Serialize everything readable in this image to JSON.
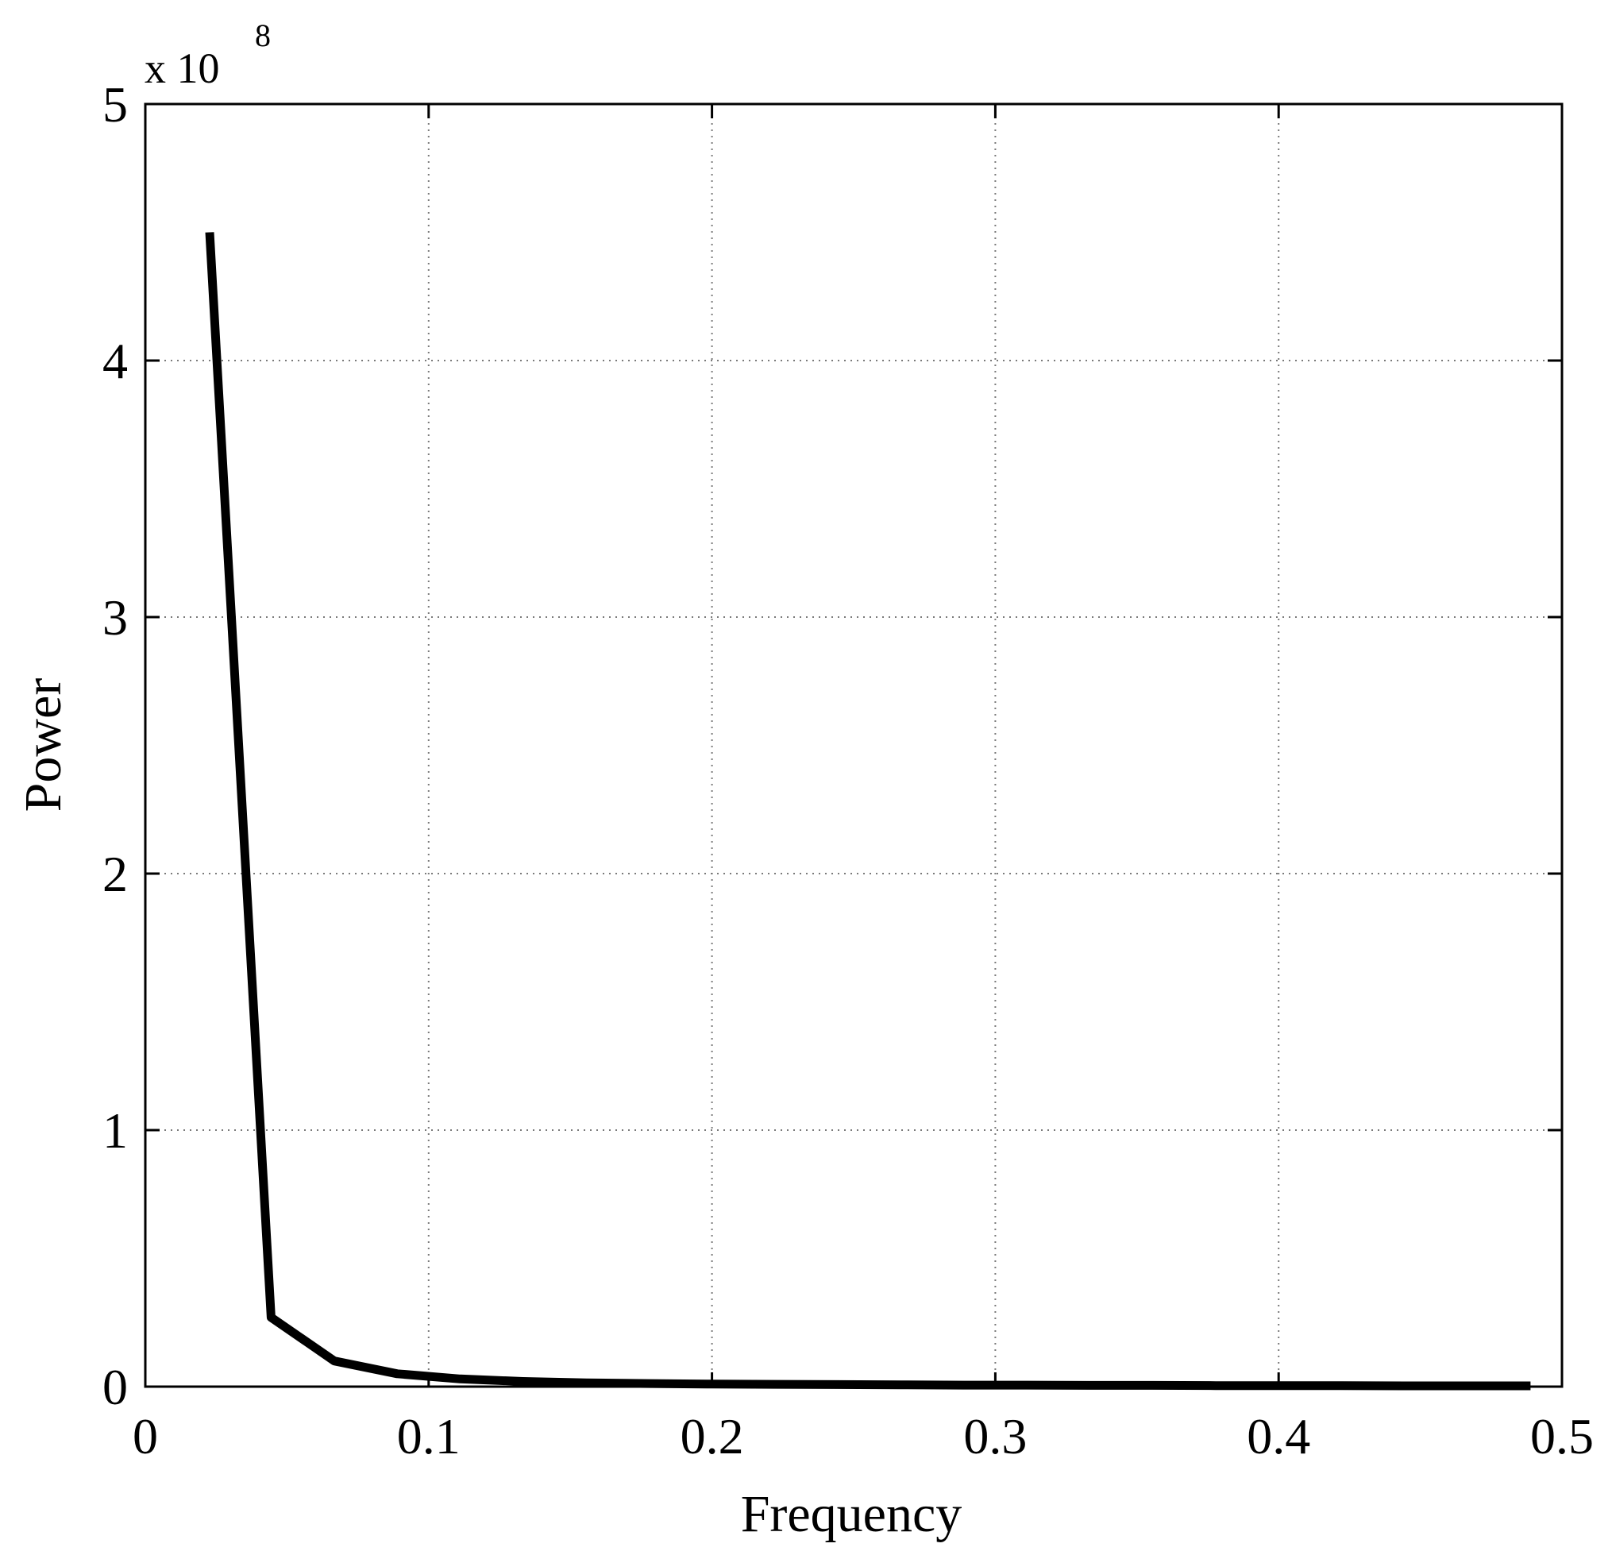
{
  "chart_data": {
    "type": "line",
    "title": "",
    "xlabel": "Frequency",
    "ylabel": "Power",
    "xlim": [
      0,
      0.5
    ],
    "ylim": [
      0,
      5
    ],
    "x_ticks": [
      "0",
      "0.1",
      "0.2",
      "0.3",
      "0.4",
      "0.5"
    ],
    "y_ticks": [
      "0",
      "1",
      "2",
      "3",
      "4",
      "5"
    ],
    "y_exponent": {
      "base": "x 10",
      "power": "8"
    },
    "grid": true,
    "series": [
      {
        "color": "#000000",
        "x": [
          0.0227,
          0.0444,
          0.0667,
          0.0889,
          0.1111,
          0.1333,
          0.1556,
          0.1778,
          0.2,
          0.2222,
          0.2444,
          0.2667,
          0.2889,
          0.3111,
          0.3333,
          0.3556,
          0.3778,
          0.4,
          0.4222,
          0.4444,
          0.4667,
          0.4889
        ],
        "y": [
          4.5,
          0.27,
          0.1,
          0.05,
          0.03,
          0.02,
          0.015,
          0.012,
          0.01,
          0.009,
          0.008,
          0.007,
          0.006,
          0.006,
          0.005,
          0.005,
          0.004,
          0.004,
          0.004,
          0.003,
          0.003,
          0.003
        ]
      }
    ]
  }
}
